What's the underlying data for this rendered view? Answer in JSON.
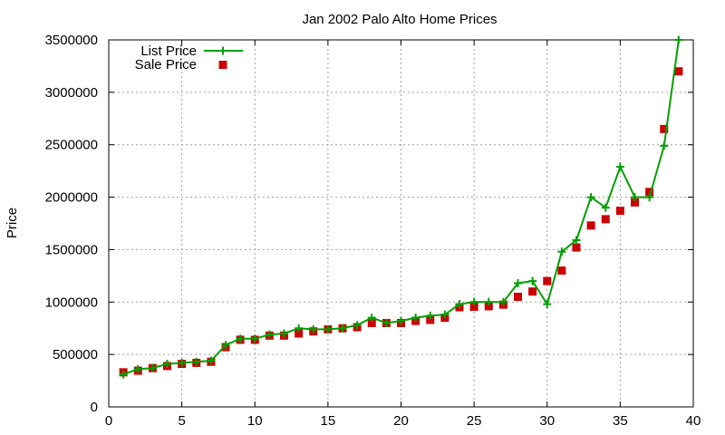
{
  "chart_data": {
    "type": "line",
    "title": "Jan 2002 Palo Alto Home Prices",
    "xlabel": "",
    "ylabel": "Price",
    "xlim": [
      0,
      40
    ],
    "ylim": [
      0,
      3500000
    ],
    "x_ticks": [
      0,
      5,
      10,
      15,
      20,
      25,
      30,
      35,
      40
    ],
    "y_ticks": [
      0,
      500000,
      1000000,
      1500000,
      2000000,
      2500000,
      3000000,
      3500000
    ],
    "grid": true,
    "legend_position": "top-left",
    "series": [
      {
        "name": "List Price",
        "style": "line-plus",
        "color": "#00a000",
        "x": [
          1,
          2,
          3,
          4,
          5,
          6,
          7,
          8,
          9,
          10,
          11,
          12,
          13,
          14,
          15,
          16,
          17,
          18,
          19,
          20,
          21,
          22,
          23,
          24,
          25,
          26,
          27,
          28,
          29,
          30,
          31,
          32,
          33,
          34,
          35,
          36,
          37,
          38,
          39
        ],
        "values": [
          310000,
          360000,
          370000,
          410000,
          420000,
          430000,
          440000,
          590000,
          650000,
          650000,
          690000,
          700000,
          750000,
          740000,
          740000,
          750000,
          780000,
          850000,
          800000,
          820000,
          850000,
          870000,
          880000,
          980000,
          1000000,
          1000000,
          1000000,
          1180000,
          1200000,
          980000,
          1480000,
          1590000,
          2000000,
          1900000,
          2290000,
          2000000,
          2000000,
          2490000,
          3500000
        ]
      },
      {
        "name": "Sale Price",
        "style": "square-points",
        "color": "#cc0000",
        "x": [
          1,
          2,
          3,
          4,
          5,
          6,
          7,
          8,
          9,
          10,
          11,
          12,
          13,
          14,
          15,
          16,
          17,
          18,
          19,
          20,
          21,
          22,
          23,
          24,
          25,
          26,
          27,
          28,
          29,
          30,
          31,
          32,
          33,
          34,
          35,
          36,
          37,
          38,
          39
        ],
        "values": [
          330000,
          345000,
          370000,
          390000,
          410000,
          420000,
          430000,
          570000,
          640000,
          640000,
          680000,
          680000,
          700000,
          720000,
          740000,
          750000,
          760000,
          800000,
          800000,
          800000,
          820000,
          830000,
          850000,
          950000,
          955000,
          960000,
          975000,
          1050000,
          1100000,
          1200000,
          1300000,
          1520000,
          1730000,
          1790000,
          1870000,
          1950000,
          2050000,
          2650000,
          3200000
        ]
      }
    ]
  }
}
